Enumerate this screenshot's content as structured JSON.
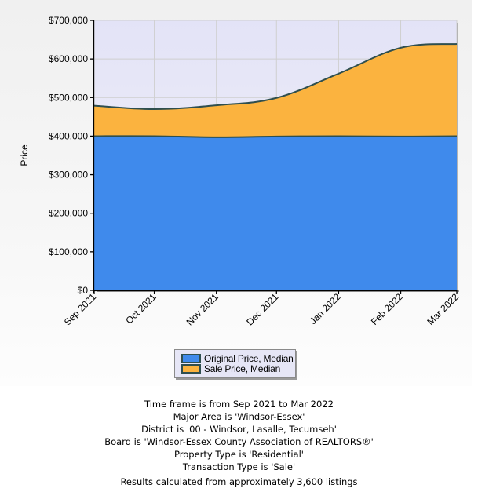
{
  "chart_data": {
    "type": "area",
    "stacked": false,
    "title": "",
    "xlabel": "",
    "ylabel": "Price",
    "ylim": [
      0,
      700000
    ],
    "yticks": [
      0,
      100000,
      200000,
      300000,
      400000,
      500000,
      600000,
      700000
    ],
    "ytick_labels": [
      "$0",
      "$100,000",
      "$200,000",
      "$300,000",
      "$400,000",
      "$500,000",
      "$600,000",
      "$700,000"
    ],
    "categories": [
      "Sep 2021",
      "Oct 2021",
      "Nov 2021",
      "Dec 2021",
      "Jan 2022",
      "Feb 2022",
      "Mar 2022"
    ],
    "category_days": [
      0,
      30,
      61,
      91,
      122,
      153,
      181
    ],
    "grid": true,
    "legend_position": "bottom-center",
    "series": [
      {
        "name": "Sale Price, Median",
        "color": "#fbb33f",
        "values": [
          479000,
          470000,
          480000,
          499000,
          562000,
          629000,
          639000
        ]
      },
      {
        "name": "Original Price, Median",
        "color": "#3f8aec",
        "values": [
          399900,
          399900,
          397000,
          399000,
          399900,
          399000,
          399900
        ]
      }
    ],
    "line_color": "#2f4f4f",
    "plot_background": "#e6e6f8"
  },
  "legend": {
    "items": [
      {
        "label": "Original Price, Median",
        "color": "#3f8aec"
      },
      {
        "label": "Sale Price, Median",
        "color": "#fbb33f"
      }
    ]
  },
  "caption": {
    "lines": [
      "Time frame is from Sep 2021 to Mar 2022",
      "Major Area is 'Windsor-Essex'",
      "District is '00 - Windsor, Lasalle, Tecumseh'",
      "Board is 'Windsor-Essex County Association of REALTORS®'",
      "Property Type is 'Residential'",
      "Transaction Type is 'Sale'"
    ],
    "footer": "Results calculated from approximately 3,600 listings"
  }
}
